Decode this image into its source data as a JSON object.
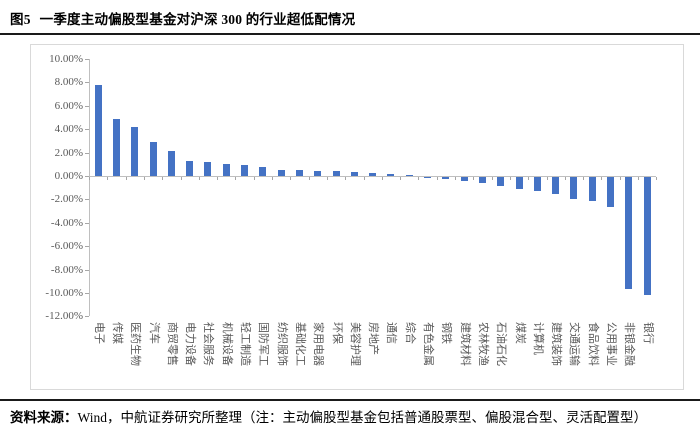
{
  "figure": {
    "label": "图5",
    "title": "一季度主动偏股型基金对沪深 300 的行业超低配情况"
  },
  "footer": {
    "source_label": "资料来源：",
    "note": "Wind，中航证券研究所整理（注：主动偏股型基金包括普通股票型、偏股混合型、灵活配置型）"
  },
  "chart_data": {
    "type": "bar",
    "title": "一季度主动偏股型基金对沪深300的行业超低配情况",
    "xlabel": "",
    "ylabel": "",
    "unit": "%",
    "categories": [
      "电子",
      "传媒",
      "医药生物",
      "汽车",
      "商贸零售",
      "电力设备",
      "社会服务",
      "机械设备",
      "轻工制造",
      "国防军工",
      "纺织服饰",
      "基础化工",
      "家用电器",
      "环保",
      "美容护理",
      "房地产",
      "通信",
      "综合",
      "有色金属",
      "钢铁",
      "建筑材料",
      "农林牧渔",
      "石油石化",
      "煤炭",
      "计算机",
      "建筑装饰",
      "交通运输",
      "食品饮料",
      "公用事业",
      "非银金融",
      "银行"
    ],
    "values": [
      7.8,
      4.9,
      4.2,
      2.9,
      2.1,
      1.3,
      1.2,
      1.05,
      0.95,
      0.8,
      0.55,
      0.5,
      0.45,
      0.4,
      0.3,
      0.25,
      0.15,
      0.05,
      -0.1,
      -0.2,
      -0.3,
      -0.55,
      -0.75,
      -1.05,
      -1.2,
      -1.45,
      -1.9,
      -2.05,
      -2.6,
      -9.6,
      -10.1
    ],
    "y_ticks": [
      "10.00%",
      "8.00%",
      "6.00%",
      "4.00%",
      "2.00%",
      "0.00%",
      "-2.00%",
      "-4.00%",
      "-6.00%",
      "-8.00%",
      "-10.00%",
      "-12.00%"
    ],
    "ylim": [
      -12,
      10
    ],
    "grid": false,
    "legend": "none",
    "bar_color": "#4472C4",
    "axis_color": "#bfbfbf",
    "tick_label_color": "#595959",
    "frame_color": "#d9d9d9"
  }
}
